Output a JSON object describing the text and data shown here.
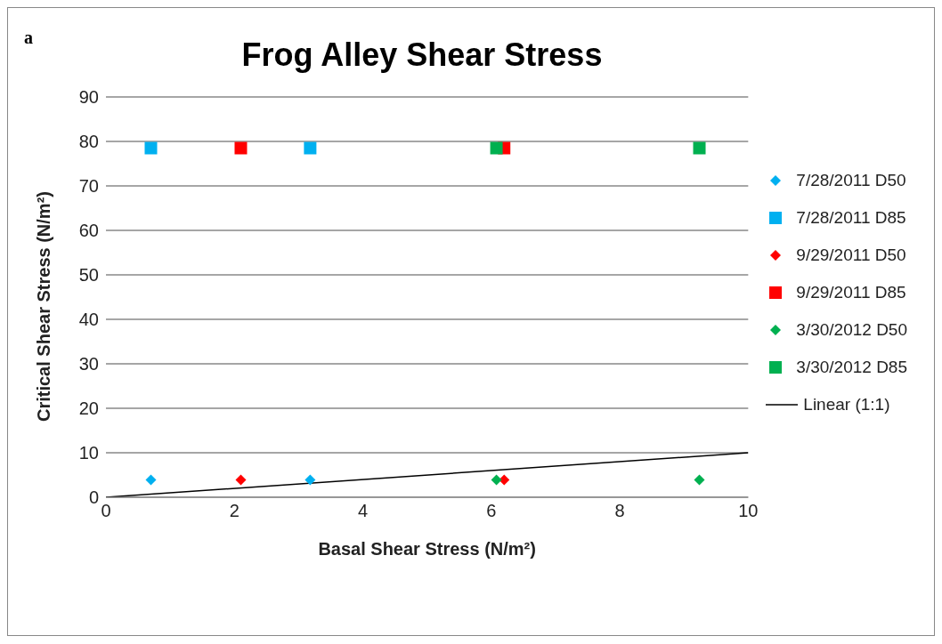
{
  "chart_data": {
    "type": "scatter",
    "title": "Frog Alley Shear Stress",
    "xlabel": "Basal Shear Stress (N/m²)",
    "ylabel": "Critical Shear Stress (N/m²)",
    "annotations": [
      "a"
    ],
    "xlim": [
      0,
      10
    ],
    "xticks": [
      0,
      2,
      4,
      6,
      8,
      10
    ],
    "ylim": [
      0,
      90
    ],
    "yticks": [
      0,
      10,
      20,
      30,
      40,
      50,
      60,
      70,
      80,
      90
    ],
    "grid": "y",
    "legend": "right",
    "series": [
      {
        "name": "7/28/2011 D50",
        "color": "#00b0f0",
        "marker": "diamond",
        "x": [
          0.7,
          3.18
        ],
        "values": [
          3.9,
          3.9
        ]
      },
      {
        "name": "7/28/2011 D85",
        "color": "#00b0f0",
        "marker": "square",
        "x": [
          0.7,
          3.18
        ],
        "values": [
          78.5,
          78.5
        ]
      },
      {
        "name": "9/29/2011 D50",
        "color": "#ff0000",
        "marker": "diamond",
        "x": [
          2.1,
          6.2
        ],
        "values": [
          3.9,
          3.9
        ]
      },
      {
        "name": "9/29/2011 D85",
        "color": "#ff0000",
        "marker": "square",
        "x": [
          2.1,
          6.2
        ],
        "values": [
          78.5,
          78.5
        ]
      },
      {
        "name": "3/30/2012 D50",
        "color": "#00b050",
        "marker": "diamond",
        "x": [
          6.08,
          9.24
        ],
        "values": [
          3.9,
          3.9
        ]
      },
      {
        "name": "3/30/2012 D85",
        "color": "#00b050",
        "marker": "square",
        "x": [
          6.08,
          9.24
        ],
        "values": [
          78.5,
          78.5
        ]
      },
      {
        "name": "Linear (1:1)",
        "type": "line",
        "color": "#000000",
        "marker": "none",
        "x": [
          0,
          10
        ],
        "values": [
          0,
          10
        ]
      }
    ]
  }
}
